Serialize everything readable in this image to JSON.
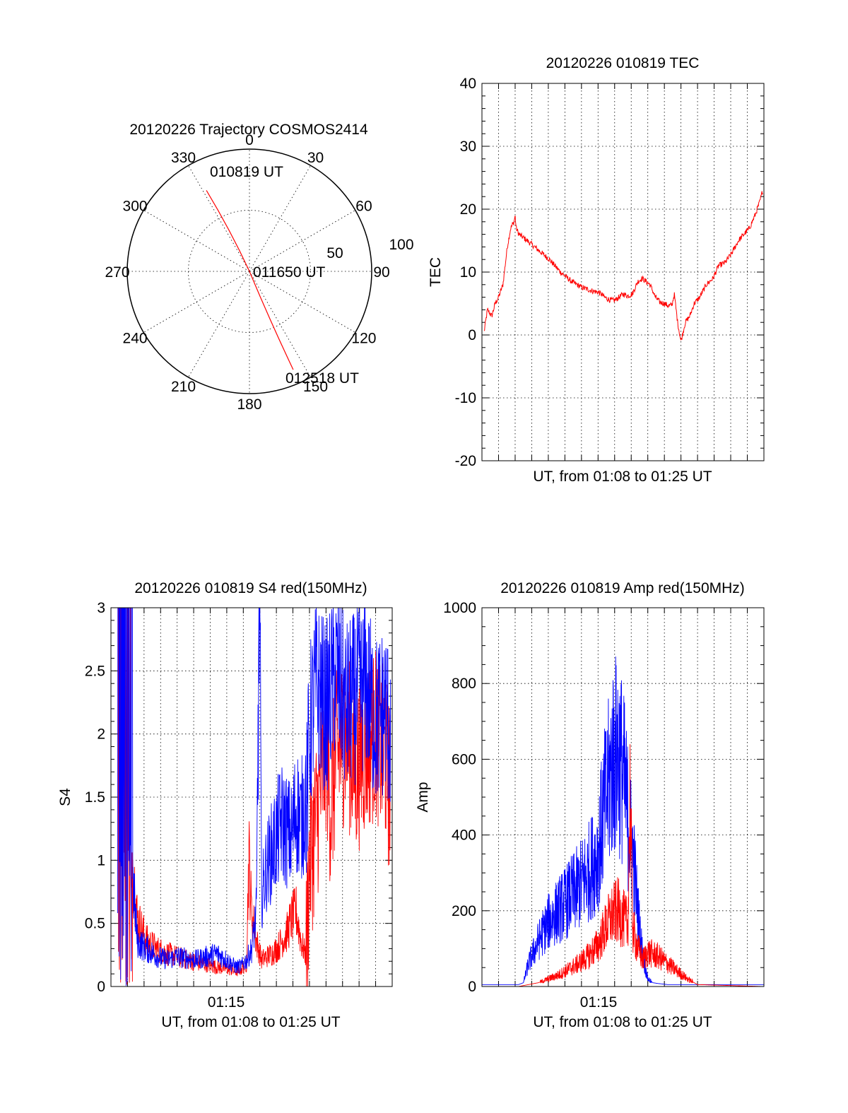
{
  "colors": {
    "red": "#ff0000",
    "blue": "#0000ff",
    "axis": "#000000"
  },
  "polar": {
    "title": "20120226 Trajectory COSMOS2414",
    "azimuth_labels": [
      "0",
      "30",
      "60",
      "90",
      "120",
      "150",
      "180",
      "210",
      "240",
      "270",
      "300",
      "330"
    ],
    "radius_labels": [
      "50",
      "100"
    ],
    "annotations": {
      "start": "010819 UT",
      "middle": "011650 UT",
      "end": "012518 UT"
    }
  },
  "tec": {
    "title": "20120226 010819 TEC",
    "ylabel": "TEC",
    "xlabel": "UT, from 01:08 to 01:25 UT",
    "y_tick_labels": [
      "-20",
      "-10",
      "0",
      "10",
      "20",
      "30",
      "40"
    ]
  },
  "s4": {
    "title": "20120226 010819 S4 red(150MHz)",
    "ylabel": "S4",
    "xlabel": "UT, from 01:08 to 01:25 UT",
    "x_tick_label": "01:15",
    "y_tick_labels": [
      "0",
      "0.5",
      "1",
      "1.5",
      "2",
      "2.5",
      "3"
    ]
  },
  "amp": {
    "title": "20120226 010819 Amp red(150MHz)",
    "ylabel": "Amp",
    "xlabel": "UT, from 01:08 to 01:25 UT",
    "x_tick_label": "01:15",
    "y_tick_labels": [
      "0",
      "200",
      "400",
      "600",
      "800",
      "1000"
    ]
  },
  "chart_data": [
    {
      "type": "polar-trajectory",
      "title": "20120226 Trajectory COSMOS2414",
      "angular_axis": {
        "direction": "clockwise",
        "zero": "top",
        "ticks": [
          0,
          30,
          60,
          90,
          120,
          150,
          180,
          210,
          240,
          270,
          300,
          330
        ]
      },
      "radial_axis": {
        "range": [
          0,
          100
        ],
        "ticks": [
          50,
          100
        ]
      },
      "series": [
        {
          "color": "#ff0000",
          "points": [
            {
              "azimuth": 332,
              "radius": 75,
              "time": "010819 UT"
            },
            {
              "azimuth": 0,
              "radius": 0,
              "time": "011650 UT"
            },
            {
              "azimuth": 156,
              "radius": 88,
              "time": "012518 UT"
            }
          ]
        }
      ]
    },
    {
      "type": "line",
      "title": "20120226 010819 TEC",
      "xlabel": "UT, from 01:08 to 01:25 UT",
      "ylabel": "TEC",
      "xlim": [
        1.1333,
        1.4167
      ],
      "ylim": [
        -20,
        40
      ],
      "y_ticks": [
        -20,
        -10,
        0,
        10,
        20,
        30,
        40
      ],
      "grid": true,
      "series": [
        {
          "color": "#ff0000",
          "x": [
            1.1355,
            1.1388,
            1.1432,
            1.1466,
            1.15,
            1.1544,
            1.1588,
            1.1622,
            1.1655,
            1.1666,
            1.1677,
            1.1705,
            1.1788,
            1.19,
            1.2011,
            1.2122,
            1.2233,
            1.2344,
            1.2388,
            1.2444,
            1.25,
            1.2533,
            1.2566,
            1.26,
            1.2633,
            1.2666,
            1.2711,
            1.2755,
            1.28,
            1.2844,
            1.29,
            1.2944,
            1.3022,
            1.3077,
            1.3122,
            1.3166,
            1.3211,
            1.3244,
            1.3266,
            1.33,
            1.3333,
            1.3377,
            1.3422,
            1.3466,
            1.3522,
            1.3588,
            1.3655,
            1.3711,
            1.3777,
            1.3844,
            1.3911,
            1.3966,
            1.4022,
            1.4077,
            1.4122,
            1.4155
          ],
          "y": [
            0.5,
            4,
            3,
            5,
            6,
            8,
            14,
            17,
            18,
            19,
            17,
            16,
            15,
            13.5,
            12,
            10,
            8.5,
            7.5,
            7.3,
            7,
            6.8,
            6.5,
            6,
            5.7,
            5.5,
            5.5,
            6,
            6.5,
            6.2,
            6.5,
            8.5,
            9,
            8,
            6,
            5.2,
            5,
            4.6,
            4.8,
            6.5,
            2,
            -1,
            2,
            3,
            5,
            6,
            8,
            9,
            11,
            11.5,
            13,
            15,
            16,
            17,
            19,
            21,
            23
          ]
        }
      ]
    },
    {
      "type": "line",
      "title": "20120226 010819 S4 red(150MHz)",
      "xlabel": "UT, from 01:08 to 01:25 UT",
      "ylabel": "S4",
      "xlim": [
        1.1333,
        1.4167
      ],
      "ylim": [
        0,
        3
      ],
      "x_tick_labels": [
        {
          "x": 1.25,
          "label": "01:15"
        }
      ],
      "y_ticks": [
        0,
        0.5,
        1,
        1.5,
        2,
        2.5,
        3
      ],
      "grid": true,
      "series": [
        {
          "color": "#ff0000",
          "x": [
            1.14,
            1.145,
            1.15,
            1.1544,
            1.16,
            1.17,
            1.18,
            1.19,
            1.2,
            1.21,
            1.22,
            1.23,
            1.24,
            1.25,
            1.255,
            1.26,
            1.265,
            1.27,
            1.2722,
            1.275,
            1.28,
            1.285,
            1.29,
            1.295,
            1.3,
            1.305,
            1.31,
            1.315,
            1.32,
            1.325,
            1.33,
            1.3333,
            1.34,
            1.345,
            1.35,
            1.355,
            1.36,
            1.37,
            1.38,
            1.39,
            1.4,
            1.41,
            1.415
          ],
          "y": [
            2.6,
            1.8,
            2.2,
            0.9,
            0.45,
            0.3,
            0.25,
            0.22,
            0.2,
            0.18,
            0.16,
            0.15,
            0.13,
            0.12,
            0.11,
            0.1,
            0.12,
            0.15,
            0.9,
            0.5,
            0.3,
            0.18,
            0.2,
            0.22,
            0.25,
            0.3,
            0.35,
            0.45,
            0.5,
            0.3,
            0.2,
            1.0,
            1.3,
            1.6,
            1.9,
            1.4,
            1.8,
            2.0,
            1.7,
            1.9,
            2.0,
            1.8,
            1.5
          ]
        },
        {
          "color": "#0000ff",
          "x": [
            1.14,
            1.145,
            1.15,
            1.1544,
            1.16,
            1.17,
            1.18,
            1.19,
            1.2,
            1.21,
            1.22,
            1.23,
            1.24,
            1.25,
            1.255,
            1.26,
            1.265,
            1.27,
            1.275,
            1.28,
            1.283,
            1.285,
            1.29,
            1.295,
            1.3,
            1.305,
            1.31,
            1.315,
            1.32,
            1.325,
            1.33,
            1.3333,
            1.34,
            1.35,
            1.36,
            1.37,
            1.38,
            1.39,
            1.4,
            1.41,
            1.415
          ],
          "y": [
            2.8,
            2.2,
            2.5,
            0.8,
            0.3,
            0.25,
            0.2,
            0.18,
            0.2,
            0.19,
            0.18,
            0.2,
            0.22,
            0.18,
            0.15,
            0.13,
            0.14,
            0.18,
            0.25,
            0.5,
            2.85,
            0.6,
            0.8,
            0.9,
            1.0,
            1.1,
            1.05,
            1.0,
            1.2,
            1.1,
            1.3,
            2.0,
            2.4,
            2.2,
            2.5,
            2.2,
            2.3,
            2.4,
            2.1,
            2.2,
            2.0
          ]
        }
      ]
    },
    {
      "type": "line",
      "title": "20120226 010819 Amp red(150MHz)",
      "xlabel": "UT, from 01:08 to 01:25 UT",
      "ylabel": "Amp",
      "xlim": [
        1.1333,
        1.4167
      ],
      "ylim": [
        0,
        1000
      ],
      "x_tick_labels": [
        {
          "x": 1.25,
          "label": "01:15"
        }
      ],
      "y_ticks": [
        0,
        200,
        400,
        600,
        800,
        1000
      ],
      "grid": true,
      "series": [
        {
          "color": "#0000ff",
          "x": [
            1.1333,
            1.16,
            1.17,
            1.175,
            1.18,
            1.19,
            1.2,
            1.21,
            1.22,
            1.23,
            1.24,
            1.25,
            1.255,
            1.26,
            1.265,
            1.27,
            1.275,
            1.28,
            1.285,
            1.29,
            1.295,
            1.3,
            1.305,
            1.31,
            1.32,
            1.35,
            1.4167
          ],
          "y": [
            5,
            5,
            5,
            10,
            60,
            120,
            170,
            200,
            230,
            260,
            300,
            350,
            450,
            520,
            600,
            620,
            560,
            450,
            350,
            200,
            80,
            20,
            10,
            8,
            5,
            5,
            5
          ]
        },
        {
          "color": "#ff0000",
          "x": [
            1.1333,
            1.17,
            1.18,
            1.19,
            1.2,
            1.21,
            1.22,
            1.23,
            1.24,
            1.25,
            1.255,
            1.26,
            1.265,
            1.27,
            1.275,
            1.28,
            1.282,
            1.285,
            1.29,
            1.295,
            1.3,
            1.31,
            1.32,
            1.33,
            1.34,
            1.35,
            1.4167
          ],
          "y": [
            0,
            0,
            5,
            10,
            20,
            30,
            45,
            60,
            80,
            110,
            140,
            170,
            190,
            200,
            180,
            160,
            500,
            150,
            100,
            70,
            90,
            80,
            60,
            40,
            20,
            5,
            0
          ]
        }
      ]
    }
  ]
}
